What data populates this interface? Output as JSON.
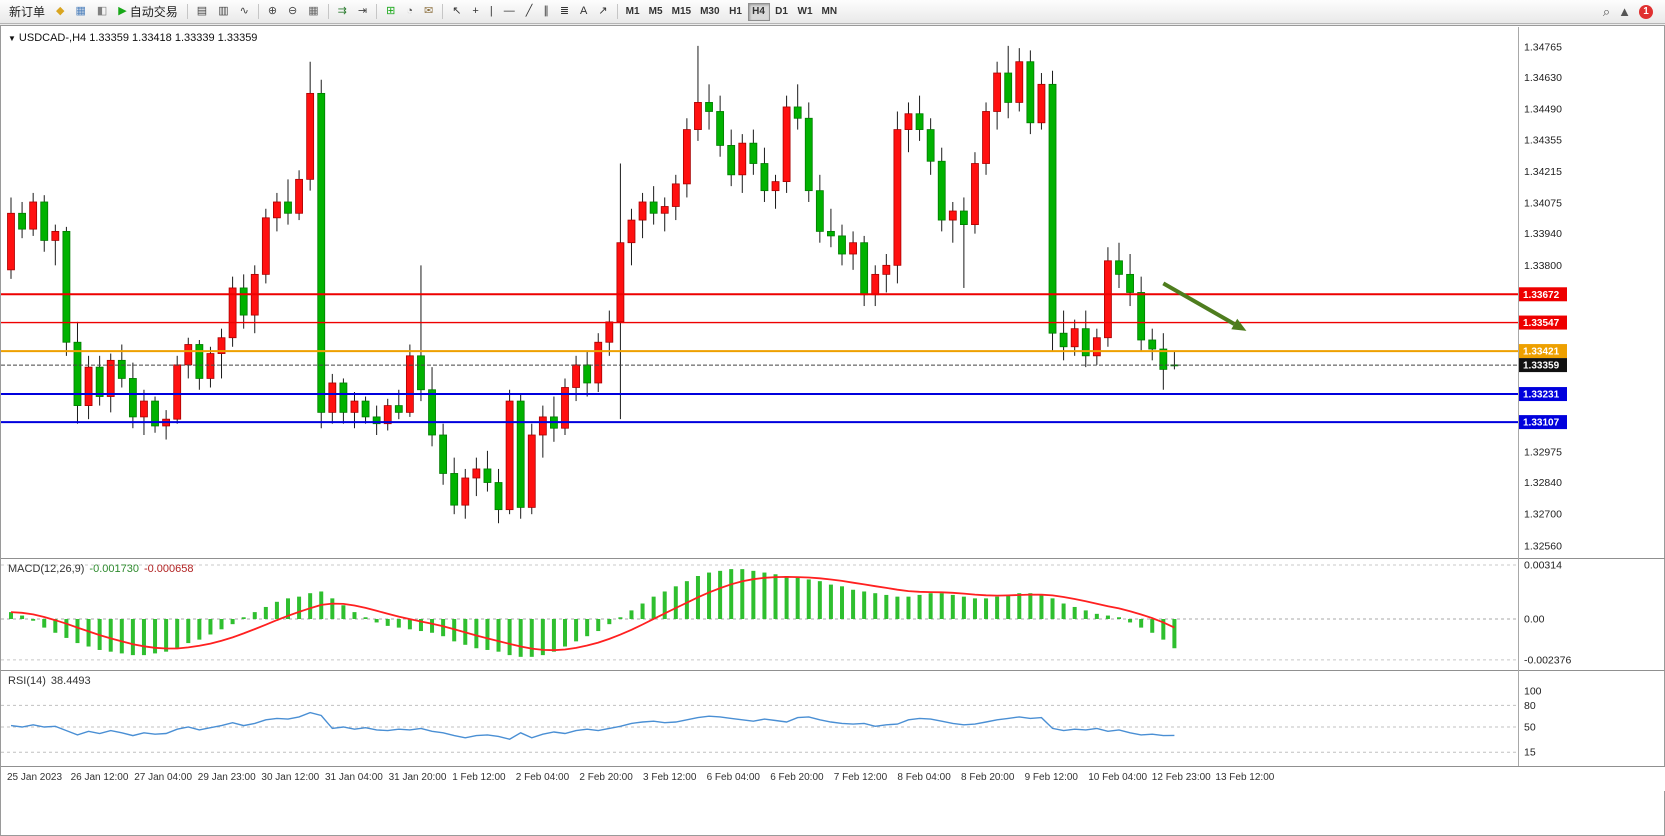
{
  "toolbar": {
    "notification_count": "1",
    "active_timeframe": "H4",
    "right": {
      "search_glyph": "⌕",
      "pointer_glyph": "▲"
    },
    "groups": [
      {
        "name": "trade",
        "items": [
          {
            "name": "new-order",
            "label": "新订单"
          },
          {
            "name": "profiles",
            "glyph": "◆",
            "color": "#d9a520"
          },
          {
            "name": "market-watch",
            "glyph": "▦",
            "color": "#4a7ebb"
          },
          {
            "name": "navigator",
            "glyph": "◧",
            "color": "#808080"
          },
          {
            "name": "auto-trading",
            "glyph": "▶",
            "color": "#18a818",
            "label": "自动交易"
          }
        ]
      },
      {
        "name": "chart-type",
        "items": [
          {
            "name": "bar-chart",
            "glyph": "▤",
            "color": "#444"
          },
          {
            "name": "candlestick-chart",
            "glyph": "▥",
            "color": "#444"
          },
          {
            "name": "line-chart",
            "glyph": "∿",
            "color": "#444"
          }
        ]
      },
      {
        "name": "zoom",
        "items": [
          {
            "name": "zoom-in",
            "glyph": "⊕",
            "color": "#444"
          },
          {
            "name": "zoom-out",
            "glyph": "⊖",
            "color": "#444"
          },
          {
            "name": "tile-windows",
            "glyph": "▦",
            "color": "#666"
          }
        ]
      },
      {
        "name": "scroll",
        "items": [
          {
            "name": "auto-scroll",
            "glyph": "⇉",
            "color": "#2e7d32"
          },
          {
            "name": "chart-shift",
            "glyph": "⇥",
            "color": "#444"
          }
        ]
      },
      {
        "name": "insert",
        "items": [
          {
            "name": "indicators",
            "glyph": "⊞",
            "color": "#18a818"
          },
          {
            "name": "periods",
            "glyph": "◔",
            "color": "#555"
          },
          {
            "name": "templates",
            "glyph": "✉",
            "color": "#8a6d3b"
          }
        ]
      },
      {
        "name": "drawing",
        "items": [
          {
            "name": "cursor",
            "glyph": "↖",
            "color": "#333"
          },
          {
            "name": "crosshair",
            "glyph": "+",
            "color": "#333"
          },
          {
            "name": "vertical-line",
            "glyph": "|",
            "color": "#333"
          },
          {
            "name": "horizontal-line",
            "glyph": "—",
            "color": "#333"
          },
          {
            "name": "trendline",
            "glyph": "╱",
            "color": "#333"
          },
          {
            "name": "equidistant-channel",
            "glyph": "∥",
            "color": "#333"
          },
          {
            "name": "fibonacci",
            "glyph": "≣",
            "color": "#333"
          },
          {
            "name": "text-tool",
            "glyph": "A",
            "color": "#333"
          },
          {
            "name": "arrow-tool",
            "glyph": "↗",
            "color": "#333"
          }
        ]
      },
      {
        "name": "timeframes",
        "items": [
          "M1",
          "M5",
          "M15",
          "M30",
          "H1",
          "H4",
          "D1",
          "W1",
          "MN"
        ]
      }
    ]
  },
  "window": {
    "collapse_glyph": "▼",
    "title": "USDCAD-,H4 1.33359 1.33418 1.33339 1.33359"
  },
  "chart_data": {
    "type": "candlestick",
    "symbol": "USDCAD-",
    "timeframe": "H4",
    "colors": {
      "up": "#ff1010",
      "up_stroke": "#a80000",
      "down": "#00b200",
      "down_stroke": "#007a00",
      "wick": "#1a1a1a",
      "macd_histogram": "#2fbf2f",
      "macd_signal": "#ff2020",
      "rsi_line": "#4a8fd4"
    },
    "price_axis": {
      "max": 1.34765,
      "min": 1.3256,
      "ticks": [
        1.34765,
        1.3463,
        1.3449,
        1.34355,
        1.34215,
        1.34075,
        1.3394,
        1.338,
        1.32975,
        1.3284,
        1.327,
        1.3256
      ]
    },
    "hlines": [
      {
        "name": "resistance-line-1",
        "value": 1.33672,
        "color": "#ee0000",
        "width": 2,
        "label": "1.33672"
      },
      {
        "name": "resistance-line-2",
        "value": 1.33547,
        "color": "#ee0000",
        "width": 1.3,
        "label": "1.33547"
      },
      {
        "name": "pivot-line",
        "value": 1.33421,
        "color": "#eea000",
        "width": 2,
        "label": "1.33421"
      },
      {
        "name": "support-line-1",
        "value": 1.33231,
        "color": "#0000dd",
        "width": 2,
        "label": "1.33231"
      },
      {
        "name": "support-line-2",
        "value": 1.33107,
        "color": "#0000dd",
        "width": 2,
        "label": "1.33107"
      }
    ],
    "current_price": {
      "value": 1.33359,
      "label": "1.33359",
      "color": "#111111"
    },
    "arrow_annotation": {
      "from_bar": 104,
      "from_price": 1.3372,
      "to_bar": 111.5,
      "to_price": 1.3351,
      "color": "#4e7d1e"
    },
    "x_labels": [
      "25 Jan 2023",
      "26 Jan 12:00",
      "27 Jan 04:00",
      "29 Jan 23:00",
      "30 Jan 12:00",
      "31 Jan 04:00",
      "31 Jan 20:00",
      "1 Feb 12:00",
      "2 Feb 04:00",
      "2 Feb 20:00",
      "3 Feb 12:00",
      "6 Feb 04:00",
      "6 Feb 20:00",
      "7 Feb 12:00",
      "8 Feb 04:00",
      "8 Feb 20:00",
      "9 Feb 12:00",
      "10 Feb 04:00",
      "12 Feb 23:00",
      "13 Feb 12:00"
    ],
    "candles": [
      [
        1.3378,
        1.341,
        1.3374,
        1.3403
      ],
      [
        1.3403,
        1.3408,
        1.3392,
        1.3396
      ],
      [
        1.3396,
        1.3412,
        1.3393,
        1.3408
      ],
      [
        1.3408,
        1.3411,
        1.3386,
        1.3391
      ],
      [
        1.3391,
        1.3398,
        1.338,
        1.3395
      ],
      [
        1.3395,
        1.3397,
        1.334,
        1.3346
      ],
      [
        1.3346,
        1.3355,
        1.331,
        1.3318
      ],
      [
        1.3318,
        1.334,
        1.3312,
        1.3335
      ],
      [
        1.3335,
        1.334,
        1.3318,
        1.3322
      ],
      [
        1.3322,
        1.3341,
        1.3315,
        1.3338
      ],
      [
        1.3338,
        1.3345,
        1.3326,
        1.333
      ],
      [
        1.333,
        1.3337,
        1.3308,
        1.3313
      ],
      [
        1.3313,
        1.3325,
        1.3305,
        1.332
      ],
      [
        1.332,
        1.3322,
        1.3306,
        1.3309
      ],
      [
        1.3309,
        1.3316,
        1.3303,
        1.3312
      ],
      [
        1.3312,
        1.334,
        1.331,
        1.3336
      ],
      [
        1.3336,
        1.3348,
        1.333,
        1.3345
      ],
      [
        1.3345,
        1.3347,
        1.3325,
        1.333
      ],
      [
        1.333,
        1.3344,
        1.3326,
        1.3341
      ],
      [
        1.3341,
        1.3352,
        1.333,
        1.3348
      ],
      [
        1.3348,
        1.3375,
        1.3344,
        1.337
      ],
      [
        1.337,
        1.3376,
        1.3352,
        1.3358
      ],
      [
        1.3358,
        1.338,
        1.335,
        1.3376
      ],
      [
        1.3376,
        1.3405,
        1.3372,
        1.3401
      ],
      [
        1.3401,
        1.3412,
        1.3395,
        1.3408
      ],
      [
        1.3408,
        1.3418,
        1.3398,
        1.3403
      ],
      [
        1.3403,
        1.3422,
        1.34,
        1.3418
      ],
      [
        1.3418,
        1.347,
        1.3413,
        1.3456
      ],
      [
        1.3456,
        1.3462,
        1.3308,
        1.3315
      ],
      [
        1.3315,
        1.3332,
        1.331,
        1.3328
      ],
      [
        1.3328,
        1.333,
        1.331,
        1.3315
      ],
      [
        1.3315,
        1.3324,
        1.3308,
        1.332
      ],
      [
        1.332,
        1.3322,
        1.331,
        1.3313
      ],
      [
        1.3313,
        1.3318,
        1.3305,
        1.331
      ],
      [
        1.331,
        1.3321,
        1.3307,
        1.3318
      ],
      [
        1.3318,
        1.3325,
        1.3312,
        1.3315
      ],
      [
        1.3315,
        1.3345,
        1.3313,
        1.334
      ],
      [
        1.334,
        1.338,
        1.332,
        1.3325
      ],
      [
        1.3325,
        1.3335,
        1.33,
        1.3305
      ],
      [
        1.3305,
        1.331,
        1.3283,
        1.3288
      ],
      [
        1.3288,
        1.3295,
        1.327,
        1.3274
      ],
      [
        1.3274,
        1.329,
        1.3268,
        1.3286
      ],
      [
        1.3286,
        1.3295,
        1.3278,
        1.329
      ],
      [
        1.329,
        1.3298,
        1.328,
        1.3284
      ],
      [
        1.3284,
        1.329,
        1.3266,
        1.3272
      ],
      [
        1.3272,
        1.3325,
        1.327,
        1.332
      ],
      [
        1.332,
        1.3323,
        1.3268,
        1.3273
      ],
      [
        1.3273,
        1.331,
        1.327,
        1.3305
      ],
      [
        1.3305,
        1.3318,
        1.3295,
        1.3313
      ],
      [
        1.3313,
        1.3322,
        1.3302,
        1.3308
      ],
      [
        1.3308,
        1.333,
        1.3305,
        1.3326
      ],
      [
        1.3326,
        1.334,
        1.332,
        1.3336
      ],
      [
        1.3336,
        1.3342,
        1.3322,
        1.3328
      ],
      [
        1.3328,
        1.335,
        1.3324,
        1.3346
      ],
      [
        1.3346,
        1.336,
        1.334,
        1.3355
      ],
      [
        1.3355,
        1.3425,
        1.3312,
        1.339
      ],
      [
        1.339,
        1.3405,
        1.338,
        1.34
      ],
      [
        1.34,
        1.3412,
        1.3392,
        1.3408
      ],
      [
        1.3408,
        1.3415,
        1.3398,
        1.3403
      ],
      [
        1.3403,
        1.341,
        1.3395,
        1.3406
      ],
      [
        1.3406,
        1.342,
        1.34,
        1.3416
      ],
      [
        1.3416,
        1.3445,
        1.341,
        1.344
      ],
      [
        1.344,
        1.3477,
        1.3435,
        1.3452
      ],
      [
        1.3452,
        1.346,
        1.344,
        1.3448
      ],
      [
        1.3448,
        1.3455,
        1.3428,
        1.3433
      ],
      [
        1.3433,
        1.344,
        1.3415,
        1.342
      ],
      [
        1.342,
        1.3438,
        1.3412,
        1.3434
      ],
      [
        1.3434,
        1.344,
        1.342,
        1.3425
      ],
      [
        1.3425,
        1.3432,
        1.3408,
        1.3413
      ],
      [
        1.3413,
        1.342,
        1.3405,
        1.3417
      ],
      [
        1.3417,
        1.3455,
        1.3412,
        1.345
      ],
      [
        1.345,
        1.346,
        1.344,
        1.3445
      ],
      [
        1.3445,
        1.3452,
        1.3408,
        1.3413
      ],
      [
        1.3413,
        1.342,
        1.339,
        1.3395
      ],
      [
        1.3395,
        1.3405,
        1.3388,
        1.3393
      ],
      [
        1.3393,
        1.3398,
        1.338,
        1.3385
      ],
      [
        1.3385,
        1.3395,
        1.3378,
        1.339
      ],
      [
        1.339,
        1.3393,
        1.3362,
        1.3367
      ],
      [
        1.3367,
        1.338,
        1.3362,
        1.3376
      ],
      [
        1.3376,
        1.3385,
        1.3368,
        1.338
      ],
      [
        1.338,
        1.3448,
        1.3372,
        1.344
      ],
      [
        1.344,
        1.3452,
        1.343,
        1.3447
      ],
      [
        1.3447,
        1.3455,
        1.3435,
        1.344
      ],
      [
        1.344,
        1.3445,
        1.342,
        1.3426
      ],
      [
        1.3426,
        1.3432,
        1.3395,
        1.34
      ],
      [
        1.34,
        1.3408,
        1.339,
        1.3404
      ],
      [
        1.3404,
        1.341,
        1.337,
        1.3398
      ],
      [
        1.3398,
        1.343,
        1.3394,
        1.3425
      ],
      [
        1.3425,
        1.3452,
        1.342,
        1.3448
      ],
      [
        1.3448,
        1.347,
        1.344,
        1.3465
      ],
      [
        1.3465,
        1.3477,
        1.3445,
        1.3452
      ],
      [
        1.3452,
        1.3476,
        1.3448,
        1.347
      ],
      [
        1.347,
        1.3475,
        1.3438,
        1.3443
      ],
      [
        1.3443,
        1.3465,
        1.344,
        1.346
      ],
      [
        1.346,
        1.3466,
        1.3342,
        1.335
      ],
      [
        1.335,
        1.336,
        1.3338,
        1.3344
      ],
      [
        1.3344,
        1.3356,
        1.334,
        1.3352
      ],
      [
        1.3352,
        1.336,
        1.3335,
        1.334
      ],
      [
        1.334,
        1.3352,
        1.3336,
        1.3348
      ],
      [
        1.3348,
        1.3388,
        1.3344,
        1.3382
      ],
      [
        1.3382,
        1.339,
        1.337,
        1.3376
      ],
      [
        1.3376,
        1.3385,
        1.3362,
        1.3368
      ],
      [
        1.3368,
        1.3375,
        1.3342,
        1.3347
      ],
      [
        1.3347,
        1.3352,
        1.3338,
        1.3343
      ],
      [
        1.3343,
        1.335,
        1.3325,
        1.3334
      ],
      [
        1.3336,
        1.3342,
        1.3334,
        1.33359
      ]
    ],
    "macd": {
      "title": "MACD(12,26,9)",
      "value1": "-0.001730",
      "value2": "-0.000658",
      "ticks": [
        "0.00314",
        "0.00",
        "-0.002376"
      ],
      "tick_values": [
        0.00314,
        0,
        -0.002376
      ],
      "signal_period": 9,
      "histogram": [
        0.0004,
        0.0002,
        -0.0001,
        -0.0005,
        -0.0008,
        -0.0011,
        -0.0014,
        -0.0016,
        -0.0018,
        -0.0019,
        -0.002,
        -0.0021,
        -0.0021,
        -0.002,
        -0.0019,
        -0.0017,
        -0.0014,
        -0.0012,
        -0.0009,
        -0.0006,
        -0.0003,
        0.0001,
        0.0004,
        0.0007,
        0.001,
        0.0012,
        0.0013,
        0.0015,
        0.0016,
        0.0012,
        0.0008,
        0.0004,
        0.0001,
        -0.0002,
        -0.0004,
        -0.0005,
        -0.0006,
        -0.0007,
        -0.0008,
        -0.001,
        -0.0013,
        -0.0015,
        -0.0017,
        -0.0018,
        -0.0019,
        -0.0021,
        -0.0022,
        -0.0022,
        -0.0021,
        -0.0019,
        -0.0016,
        -0.0013,
        -0.001,
        -0.0007,
        -0.0003,
        0.0001,
        0.0005,
        0.0009,
        0.0013,
        0.0016,
        0.0019,
        0.0022,
        0.0025,
        0.0027,
        0.0028,
        0.0029,
        0.0029,
        0.0028,
        0.0027,
        0.0026,
        0.0025,
        0.0024,
        0.0023,
        0.0022,
        0.002,
        0.0019,
        0.0017,
        0.0016,
        0.0015,
        0.0014,
        0.0013,
        0.0013,
        0.0014,
        0.0015,
        0.0015,
        0.0014,
        0.0013,
        0.0012,
        0.0012,
        0.0013,
        0.0014,
        0.0015,
        0.0015,
        0.0014,
        0.0012,
        0.0009,
        0.0007,
        0.0005,
        0.0003,
        0.0002,
        0.0001,
        -0.0002,
        -0.0005,
        -0.0008,
        -0.0012,
        -0.0017
      ]
    },
    "rsi": {
      "title": "RSI(14)",
      "value": "38.4493",
      "levels": [
        100,
        80,
        50,
        15
      ],
      "series": [
        52,
        50,
        53,
        50,
        51,
        45,
        39,
        44,
        41,
        45,
        42,
        38,
        42,
        40,
        41,
        47,
        50,
        46,
        49,
        52,
        56,
        52,
        55,
        60,
        62,
        61,
        64,
        70,
        66,
        48,
        50,
        47,
        49,
        46,
        45,
        47,
        46,
        48,
        44,
        42,
        38,
        35,
        38,
        39,
        37,
        33,
        42,
        35,
        40,
        43,
        41,
        45,
        47,
        45,
        48,
        51,
        55,
        57,
        58,
        56,
        57,
        60,
        63,
        65,
        64,
        62,
        60,
        58,
        61,
        59,
        57,
        63,
        64,
        60,
        57,
        55,
        54,
        55,
        51,
        53,
        54,
        60,
        62,
        61,
        58,
        55,
        53,
        54,
        57,
        60,
        62,
        64,
        62,
        63,
        48,
        45,
        47,
        46,
        48,
        44,
        46,
        42,
        39,
        40,
        38,
        38.4
      ]
    }
  }
}
